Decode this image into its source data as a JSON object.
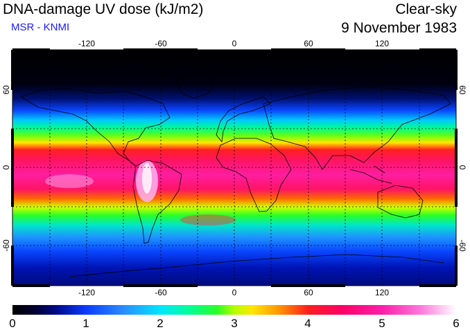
{
  "header": {
    "title": "DNA-damage UV dose (kJ/m2)",
    "subtitle": "MSR - KNMI",
    "condition": "Clear-sky",
    "date": "9 November 1983"
  },
  "map": {
    "lon_ticks": [
      "-120",
      "-60",
      "0",
      "60",
      "120"
    ],
    "lat_ticks_left": [
      "60",
      "0",
      "-60"
    ],
    "lat_ticks_right": [
      "60",
      "0",
      "-60"
    ]
  },
  "colorbar": {
    "labels": [
      "0",
      "1",
      "2",
      "3",
      "4",
      "5",
      "6"
    ]
  },
  "colors": {
    "subtitle": "#1a1aff",
    "scale": [
      "#000000",
      "#0a3cff",
      "#00e6ff",
      "#28ff28",
      "#ffe600",
      "#ff1e1e",
      "#ff1eaa",
      "#ffffff"
    ]
  }
}
